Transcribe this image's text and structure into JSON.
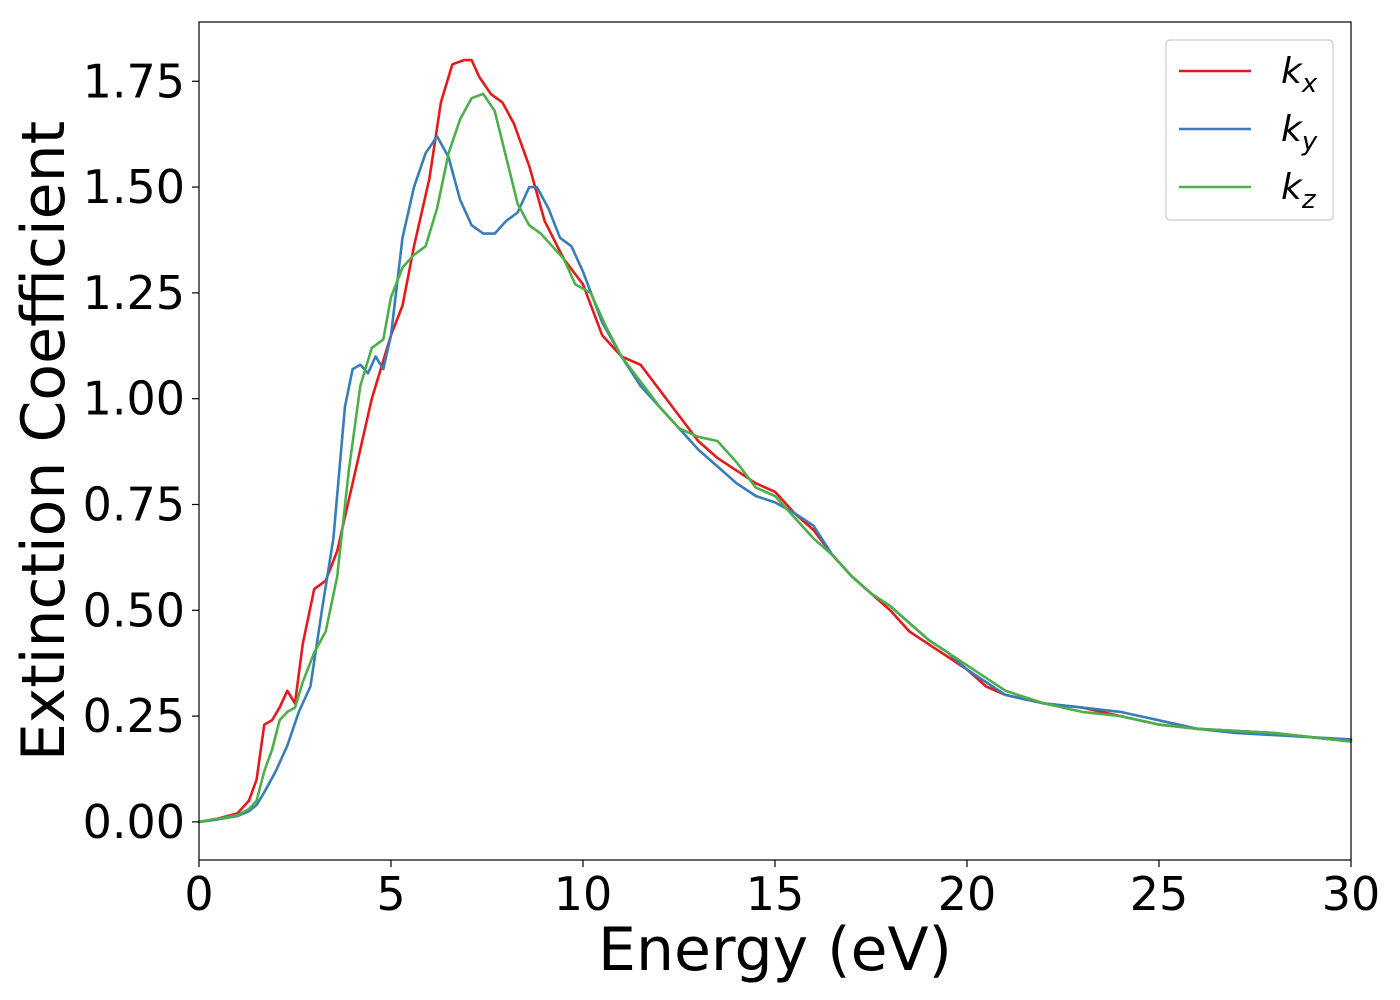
{
  "chart_data": {
    "type": "line",
    "title": "",
    "xlabel": "Energy (eV)",
    "ylabel": "Extinction Coefficient",
    "xlim": [
      0,
      30
    ],
    "ylim": [
      -0.09,
      1.89
    ],
    "xticks": [
      0,
      5,
      10,
      15,
      20,
      25,
      30
    ],
    "xtick_labels": [
      "0",
      "5",
      "10",
      "15",
      "20",
      "25",
      "30"
    ],
    "yticks": [
      0.0,
      0.25,
      0.5,
      0.75,
      1.0,
      1.25,
      1.5,
      1.75
    ],
    "ytick_labels": [
      "0.00",
      "0.25",
      "0.50",
      "0.75",
      "1.00",
      "1.25",
      "1.50",
      "1.75"
    ],
    "grid": false,
    "legend_position": "top-right",
    "series": [
      {
        "name": "k",
        "subscript": "x",
        "color": "#e41a1c",
        "x": [
          0,
          0.5,
          1.0,
          1.3,
          1.5,
          1.7,
          1.9,
          2.1,
          2.3,
          2.5,
          2.7,
          3.0,
          3.3,
          3.6,
          4.0,
          4.5,
          5.0,
          5.3,
          5.6,
          6.0,
          6.3,
          6.6,
          6.9,
          7.1,
          7.3,
          7.6,
          7.9,
          8.2,
          8.6,
          9.0,
          9.5,
          10.0,
          10.5,
          11.0,
          11.5,
          12.0,
          12.5,
          13.0,
          13.5,
          14.0,
          14.5,
          15.0,
          15.5,
          16.0,
          16.5,
          17.0,
          17.5,
          18.0,
          18.5,
          19.0,
          19.5,
          20.0,
          20.5,
          21.0,
          21.5,
          22.0,
          23.0,
          24.0,
          25.0,
          26.0,
          27.0,
          28.0,
          29.0,
          30.0
        ],
        "y": [
          0.0,
          0.008,
          0.02,
          0.05,
          0.1,
          0.23,
          0.24,
          0.27,
          0.31,
          0.28,
          0.42,
          0.55,
          0.57,
          0.64,
          0.8,
          1.0,
          1.15,
          1.22,
          1.36,
          1.52,
          1.7,
          1.79,
          1.8,
          1.8,
          1.76,
          1.72,
          1.7,
          1.65,
          1.55,
          1.42,
          1.33,
          1.27,
          1.15,
          1.1,
          1.08,
          1.02,
          0.96,
          0.9,
          0.86,
          0.83,
          0.8,
          0.78,
          0.73,
          0.69,
          0.63,
          0.58,
          0.54,
          0.5,
          0.45,
          0.42,
          0.39,
          0.36,
          0.32,
          0.3,
          0.29,
          0.28,
          0.27,
          0.25,
          0.23,
          0.22,
          0.215,
          0.21,
          0.2,
          0.19
        ]
      },
      {
        "name": "k",
        "subscript": "y",
        "color": "#377eb8",
        "x": [
          0,
          0.5,
          1.0,
          1.3,
          1.5,
          1.7,
          2.0,
          2.3,
          2.6,
          2.9,
          3.2,
          3.5,
          3.8,
          4.0,
          4.2,
          4.4,
          4.6,
          4.8,
          5.0,
          5.3,
          5.6,
          5.9,
          6.2,
          6.5,
          6.8,
          7.1,
          7.4,
          7.7,
          8.0,
          8.3,
          8.6,
          8.8,
          9.1,
          9.4,
          9.7,
          10.0,
          10.5,
          11.0,
          11.5,
          12.0,
          12.5,
          13.0,
          13.5,
          14.0,
          14.5,
          15.0,
          15.5,
          16.0,
          16.5,
          17.0,
          17.5,
          18.0,
          18.5,
          19.0,
          19.5,
          20.0,
          21.0,
          22.0,
          23.0,
          24.0,
          25.0,
          26.0,
          27.0,
          28.0,
          29.0,
          30.0
        ],
        "y": [
          0.0,
          0.006,
          0.014,
          0.025,
          0.04,
          0.07,
          0.12,
          0.18,
          0.26,
          0.32,
          0.5,
          0.67,
          0.98,
          1.07,
          1.08,
          1.06,
          1.1,
          1.07,
          1.15,
          1.38,
          1.5,
          1.58,
          1.62,
          1.57,
          1.47,
          1.41,
          1.39,
          1.39,
          1.42,
          1.44,
          1.5,
          1.5,
          1.45,
          1.38,
          1.36,
          1.3,
          1.18,
          1.1,
          1.03,
          0.98,
          0.93,
          0.88,
          0.84,
          0.8,
          0.77,
          0.755,
          0.73,
          0.7,
          0.63,
          0.58,
          0.54,
          0.51,
          0.47,
          0.43,
          0.4,
          0.36,
          0.3,
          0.28,
          0.27,
          0.26,
          0.24,
          0.22,
          0.21,
          0.205,
          0.2,
          0.195
        ]
      },
      {
        "name": "k",
        "subscript": "z",
        "color": "#4daf4a",
        "x": [
          0,
          0.5,
          1.0,
          1.3,
          1.5,
          1.7,
          1.9,
          2.1,
          2.3,
          2.5,
          2.7,
          3.0,
          3.3,
          3.6,
          3.9,
          4.2,
          4.5,
          4.8,
          5.0,
          5.3,
          5.6,
          5.9,
          6.2,
          6.5,
          6.8,
          7.1,
          7.4,
          7.7,
          8.0,
          8.3,
          8.6,
          8.9,
          9.2,
          9.5,
          9.8,
          10.2,
          10.6,
          11.0,
          11.5,
          12.0,
          12.5,
          13.0,
          13.5,
          14.0,
          14.5,
          15.0,
          15.5,
          16.0,
          16.5,
          17.0,
          17.5,
          18.0,
          18.5,
          19.0,
          19.5,
          20.0,
          21.0,
          22.0,
          23.0,
          24.0,
          25.0,
          26.0,
          27.0,
          28.0,
          29.0,
          30.0
        ],
        "y": [
          0.0,
          0.007,
          0.016,
          0.03,
          0.05,
          0.12,
          0.17,
          0.24,
          0.26,
          0.27,
          0.33,
          0.4,
          0.45,
          0.58,
          0.83,
          1.03,
          1.12,
          1.14,
          1.24,
          1.31,
          1.34,
          1.36,
          1.45,
          1.58,
          1.66,
          1.71,
          1.72,
          1.68,
          1.57,
          1.46,
          1.41,
          1.39,
          1.36,
          1.33,
          1.27,
          1.25,
          1.17,
          1.1,
          1.04,
          0.98,
          0.93,
          0.91,
          0.9,
          0.85,
          0.79,
          0.77,
          0.72,
          0.67,
          0.63,
          0.58,
          0.54,
          0.51,
          0.47,
          0.43,
          0.4,
          0.37,
          0.31,
          0.28,
          0.26,
          0.25,
          0.23,
          0.22,
          0.215,
          0.21,
          0.2,
          0.19
        ]
      }
    ]
  }
}
